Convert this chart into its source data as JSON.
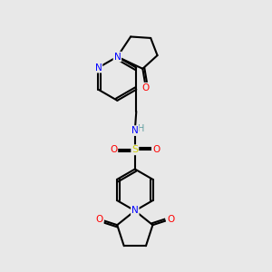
{
  "bg_color": "#e8e8e8",
  "atom_colors": {
    "C": "#000000",
    "N": "#0000ff",
    "O": "#ff0000",
    "S": "#cccc00",
    "H": "#5f9ea0"
  },
  "bond_color": "#000000",
  "bond_width": 1.5
}
